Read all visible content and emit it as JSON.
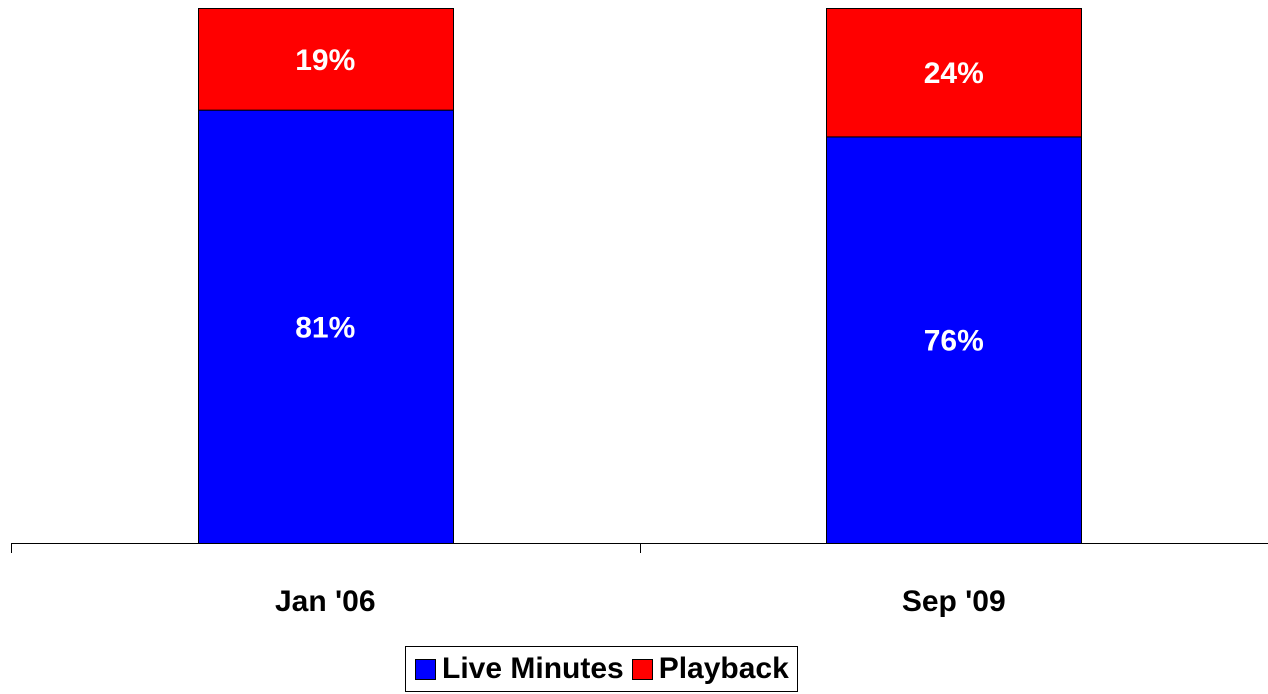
{
  "chart_data": {
    "type": "bar",
    "stacked": true,
    "categories": [
      "Jan '06",
      "Sep '09"
    ],
    "series": [
      {
        "name": "Live Minutes",
        "color": "#0000FF",
        "values": [
          81,
          76
        ],
        "labels": [
          "81%",
          "76%"
        ]
      },
      {
        "name": "Playback",
        "color": "#FF0000",
        "values": [
          19,
          24
        ],
        "labels": [
          "19%",
          "24%"
        ]
      }
    ],
    "ylim": [
      0,
      100
    ],
    "grid": false,
    "legend_position": "bottom"
  },
  "legend": {
    "items": [
      {
        "label": "Live Minutes",
        "color": "#0000FF"
      },
      {
        "label": "Playback",
        "color": "#FF0000"
      }
    ]
  }
}
